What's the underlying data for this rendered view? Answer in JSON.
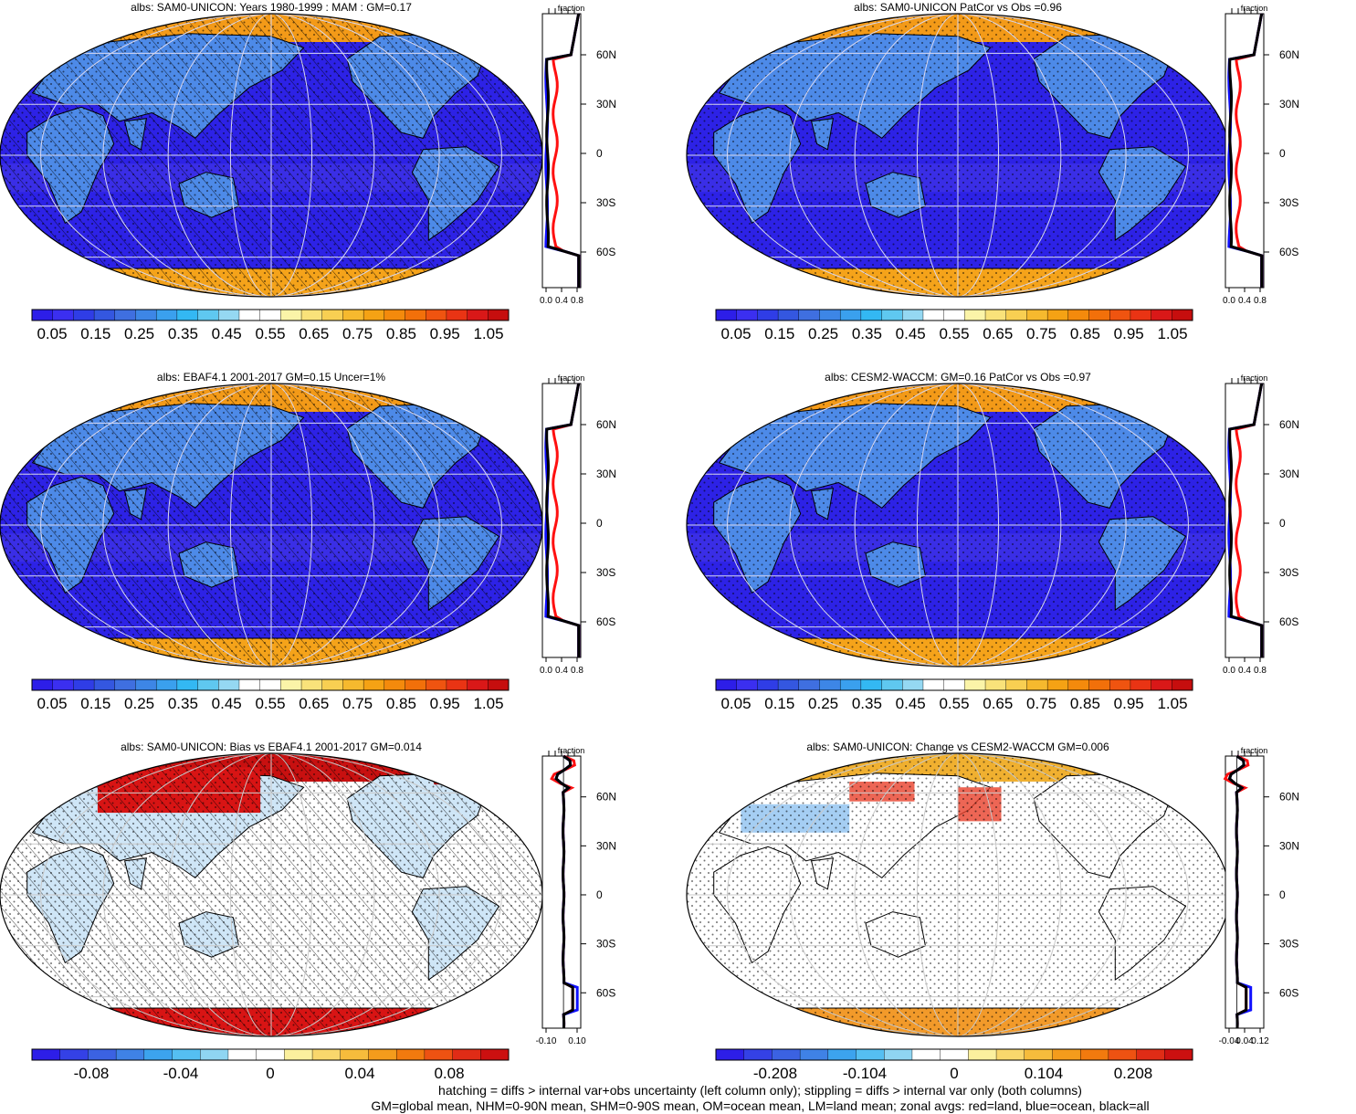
{
  "panels": [
    {
      "id": "p1",
      "title": "albs: SAM0-UNICON: Years 1980-1999 : MAM : GM=0.17",
      "style": "abs",
      "hatch": true,
      "stipple": true,
      "colorbar_labels": [
        "0.05",
        "0.15",
        "0.25",
        "0.35",
        "0.45",
        "0.55",
        "0.65",
        "0.75",
        "0.85",
        "0.95",
        "1.05"
      ],
      "zonal": {
        "header": "fraction",
        "x_tick_labels": [
          "0.0",
          "0.4",
          "0.8"
        ],
        "xlim": [
          0.0,
          0.9
        ],
        "lat_labels": [
          "60N",
          "30N",
          "0",
          "30S",
          "60S"
        ]
      }
    },
    {
      "id": "p2",
      "title": "albs: SAM0-UNICON PatCor vs Obs =0.96",
      "style": "abs",
      "hatch": false,
      "stipple": true,
      "colorbar_labels": [
        "0.05",
        "0.15",
        "0.25",
        "0.35",
        "0.45",
        "0.55",
        "0.65",
        "0.75",
        "0.85",
        "0.95",
        "1.05"
      ],
      "zonal": {
        "header": "fraction",
        "x_tick_labels": [
          "0.0",
          "0.4",
          "0.8"
        ],
        "xlim": [
          0.0,
          0.9
        ],
        "lat_labels": [
          "60N",
          "30N",
          "0",
          "30S",
          "60S"
        ]
      }
    },
    {
      "id": "p3",
      "title": "albs: EBAF4.1 2001-2017 GM=0.15 Uncer=1%",
      "style": "abs",
      "hatch": true,
      "stipple": true,
      "colorbar_labels": [
        "0.05",
        "0.15",
        "0.25",
        "0.35",
        "0.45",
        "0.55",
        "0.65",
        "0.75",
        "0.85",
        "0.95",
        "1.05"
      ],
      "zonal": {
        "header": "fraction",
        "x_tick_labels": [
          "0.0",
          "0.4",
          "0.8"
        ],
        "xlim": [
          0.0,
          0.9
        ],
        "lat_labels": [
          "60N",
          "30N",
          "0",
          "30S",
          "60S"
        ]
      }
    },
    {
      "id": "p4",
      "title": "albs: CESM2-WACCM: GM=0.16 PatCor vs Obs =0.97",
      "style": "abs",
      "hatch": false,
      "stipple": true,
      "colorbar_labels": [
        "0.05",
        "0.15",
        "0.25",
        "0.35",
        "0.45",
        "0.55",
        "0.65",
        "0.75",
        "0.85",
        "0.95",
        "1.05"
      ],
      "zonal": {
        "header": "fraction",
        "x_tick_labels": [
          "0.0",
          "0.4",
          "0.8"
        ],
        "xlim": [
          0.0,
          0.9
        ],
        "lat_labels": [
          "60N",
          "30N",
          "0",
          "30S",
          "60S"
        ]
      }
    },
    {
      "id": "p5",
      "title": "albs: SAM0-UNICON: Bias vs EBAF4.1 2001-2017 GM=0.014",
      "style": "diff",
      "hatch": true,
      "stipple": true,
      "colorbar_labels": [
        "-0.08",
        "-0.04",
        "0",
        "0.04",
        "0.08"
      ],
      "zonal": {
        "header": "fraction",
        "x_tick_labels": [
          "-0.10",
          "0.10"
        ],
        "xlim": [
          -0.12,
          0.12
        ],
        "lat_labels": [
          "60N",
          "30N",
          "0",
          "30S",
          "60S"
        ]
      }
    },
    {
      "id": "p6",
      "title": "albs: SAM0-UNICON: Change vs CESM2-WACCM GM=0.006",
      "style": "change",
      "hatch": false,
      "stipple": true,
      "colorbar_labels": [
        "-0.208",
        "-0.104",
        "0",
        "0.104",
        "0.208"
      ],
      "zonal": {
        "header": "fraction",
        "x_tick_labels": [
          "-0.04",
          "0.04",
          "0.12"
        ],
        "xlim": [
          -0.06,
          0.18
        ],
        "lat_labels": [
          "60N",
          "30N",
          "0",
          "30S",
          "60S"
        ]
      }
    }
  ],
  "colors": {
    "abs_ramp": [
      "#2d1ee8",
      "#3b2ff0",
      "#2f3de6",
      "#3457e0",
      "#3f6fe0",
      "#3d86e6",
      "#3aa0ee",
      "#33b8f3",
      "#5fc8f0",
      "#95d8f2",
      "#ffffff",
      "#ffffff",
      "#fbf4a8",
      "#f9e27a",
      "#f8cf52",
      "#f6b92e",
      "#f5a214",
      "#f48a0c",
      "#f2700a",
      "#ef5410",
      "#e93414",
      "#d91818",
      "#c60e0e"
    ],
    "ocean_abs": "#2d22e6",
    "land_abs": "#4d8ae8",
    "ice_abs": "#f5a31a",
    "zonal_land": "#ff1010",
    "zonal_ocean": "#1010ff",
    "zonal_all": "#000000"
  },
  "footer": {
    "line1": "hatching = diffs > internal var+obs uncertainty (left column only); stippling = diffs > internal var only (both columns)",
    "line2": "GM=global mean, NHM=0-90N mean, SHM=0-90S mean, OM=ocean mean, LM=land mean; zonal avgs: red=land, blue=ocean, black=all"
  }
}
